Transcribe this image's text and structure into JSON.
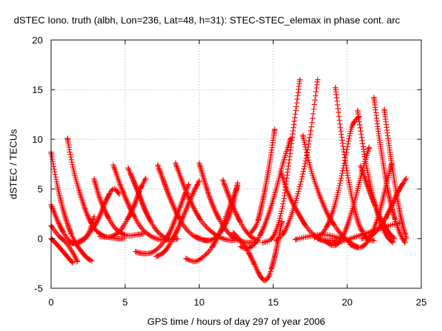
{
  "chart_data": {
    "type": "scatter",
    "title": "dSTEC Iono. truth (albh, Lon=236, Lat=48, h=31): STEC-STEC_elemax in phase cont. arc",
    "xlabel": "GPS time / hours of day 297 of year 2006",
    "ylabel": "dSTEC  / TECUs",
    "xlim": [
      0,
      25
    ],
    "ylim": [
      -5,
      20
    ],
    "x_ticks": [
      "0",
      "5",
      "10",
      "15",
      "20",
      "25"
    ],
    "y_ticks": [
      "-5",
      "0",
      "5",
      "10",
      "15",
      "20"
    ],
    "grid": true,
    "marker": "+",
    "colors": {
      "series": "#ff0000",
      "grid": "#a0a0a0",
      "axis": "#000000"
    },
    "arcs": [
      {
        "x": [
          0.0,
          0.4,
          0.8,
          1.2,
          1.6,
          2.0,
          2.4,
          2.8
        ],
        "y": [
          8.7,
          5.5,
          3.0,
          1.1,
          -0.3,
          -1.2,
          -1.9,
          -2.3
        ]
      },
      {
        "x": [
          0.0,
          0.5,
          1.0,
          1.5,
          2.0,
          2.5,
          2.9
        ],
        "y": [
          3.4,
          1.6,
          0.2,
          -0.5,
          -0.3,
          0.4,
          2.2
        ]
      },
      {
        "x": [
          0.0,
          0.5,
          1.0,
          1.5,
          1.8
        ],
        "y": [
          1.3,
          0.3,
          -0.4,
          -1.5,
          -2.4
        ]
      },
      {
        "x": [
          0.0,
          0.4,
          0.8,
          1.2,
          1.5
        ],
        "y": [
          0.0,
          -0.6,
          -1.3,
          -2.0,
          -2.5
        ]
      },
      {
        "x": [
          1.1,
          1.5,
          2.0,
          2.5,
          3.0,
          3.5,
          4.0,
          4.5,
          5.0
        ],
        "y": [
          10.1,
          7.0,
          4.3,
          2.2,
          0.9,
          0.3,
          0.1,
          0.0,
          0.0
        ]
      },
      {
        "x": [
          2.9,
          3.3,
          3.8,
          4.3,
          4.8,
          5.3,
          5.8,
          6.3
        ],
        "y": [
          6.0,
          4.0,
          2.3,
          1.1,
          0.5,
          0.3,
          0.4,
          0.5
        ]
      },
      {
        "x": [
          1.3,
          2.0,
          2.6,
          3.2,
          3.7,
          4.2,
          4.6
        ],
        "y": [
          -0.5,
          -0.2,
          0.6,
          2.0,
          3.8,
          5.0,
          4.5
        ]
      },
      {
        "x": [
          4.2,
          4.7,
          5.2,
          5.7,
          6.2,
          6.8,
          7.4,
          8.0
        ],
        "y": [
          7.4,
          5.3,
          3.5,
          2.0,
          0.9,
          0.2,
          -0.1,
          -0.1
        ]
      },
      {
        "x": [
          5.2,
          5.6,
          6.0,
          6.4,
          6.9,
          7.4,
          8.0,
          8.6
        ],
        "y": [
          7.1,
          5.7,
          4.2,
          2.7,
          1.3,
          0.4,
          -0.1,
          0.0
        ]
      },
      {
        "x": [
          3.3,
          4.0,
          4.6,
          5.1,
          5.6,
          6.0,
          6.4
        ],
        "y": [
          0.2,
          0.2,
          0.7,
          1.8,
          3.3,
          4.9,
          6.1
        ]
      },
      {
        "x": [
          5.7,
          6.2,
          6.8,
          7.4,
          8.0,
          8.5,
          9.0,
          9.3
        ],
        "y": [
          -1.3,
          -1.5,
          -1.4,
          -0.7,
          0.6,
          2.4,
          4.3,
          5.5
        ]
      },
      {
        "x": [
          7.2,
          7.6,
          8.0,
          8.5,
          9.0,
          9.6,
          10.2,
          10.8
        ],
        "y": [
          7.4,
          5.8,
          4.2,
          2.5,
          1.2,
          0.3,
          -0.1,
          -0.2
        ]
      },
      {
        "x": [
          7.1,
          7.6,
          8.0,
          8.5,
          9.0,
          9.5,
          10.0
        ],
        "y": [
          -1.8,
          -1.4,
          -0.6,
          0.8,
          2.5,
          4.3,
          5.8
        ]
      },
      {
        "x": [
          8.4,
          8.9,
          9.4,
          10.0,
          10.6,
          11.2,
          11.8,
          12.4
        ],
        "y": [
          7.6,
          5.6,
          3.8,
          2.1,
          1.0,
          0.3,
          -0.1,
          -0.2
        ]
      },
      {
        "x": [
          9.1,
          9.7,
          10.3,
          10.9,
          11.5,
          12.1,
          12.6
        ],
        "y": [
          -2.0,
          -2.3,
          -1.8,
          -0.8,
          1.0,
          3.4,
          5.3
        ]
      },
      {
        "x": [
          10.0,
          10.4,
          10.8,
          11.3,
          11.8,
          12.3,
          12.9,
          13.5,
          14.0
        ],
        "y": [
          7.6,
          5.6,
          3.8,
          2.1,
          0.9,
          0.1,
          -0.3,
          -0.4,
          -0.3
        ]
      },
      {
        "x": [
          11.6,
          12.0,
          12.5,
          13.0,
          13.5,
          14.0
        ],
        "y": [
          5.9,
          4.3,
          2.5,
          1.1,
          0.2,
          -0.2
        ]
      },
      {
        "x": [
          9.8,
          10.5,
          11.2,
          11.8,
          12.3,
          12.6
        ],
        "y": [
          0.2,
          -0.2,
          0.2,
          1.5,
          3.5,
          5.6
        ]
      },
      {
        "x": [
          12.3,
          12.8,
          13.3,
          13.8,
          14.1,
          14.4,
          14.7,
          15.0,
          15.3,
          15.6
        ],
        "y": [
          0.6,
          -0.2,
          -1.3,
          -2.8,
          -3.7,
          -4.2,
          -3.8,
          -2.4,
          -0.5,
          1.8
        ]
      },
      {
        "x": [
          12.8,
          13.2,
          13.7,
          14.2,
          14.7,
          15.2,
          15.7,
          16.2
        ],
        "y": [
          -0.8,
          -1.0,
          -0.6,
          0.6,
          2.5,
          5.0,
          7.8,
          10.2
        ]
      },
      {
        "x": [
          13.5,
          13.9,
          14.2,
          14.5,
          14.8,
          15.1
        ],
        "y": [
          0.6,
          1.5,
          3.2,
          5.4,
          8.0,
          11.0
        ]
      },
      {
        "x": [
          14.3,
          15.0,
          15.6,
          16.0,
          16.4,
          16.8
        ],
        "y": [
          -0.4,
          0.2,
          3.0,
          7.0,
          11.5,
          16.0
        ]
      },
      {
        "x": [
          15.2,
          15.8,
          16.4,
          17.0,
          17.5,
          18.0
        ],
        "y": [
          -0.2,
          0.8,
          3.2,
          6.5,
          10.5,
          16.0
        ]
      },
      {
        "x": [
          15.5,
          16.0,
          16.6,
          17.2,
          17.8,
          18.4,
          19.0,
          19.6
        ],
        "y": [
          6.8,
          4.6,
          2.8,
          1.3,
          0.3,
          -0.2,
          -0.2,
          -0.3
        ]
      },
      {
        "x": [
          17.0,
          17.5,
          18.1,
          18.7,
          19.3,
          19.8,
          20.3,
          20.8
        ],
        "y": [
          10.4,
          7.2,
          4.5,
          2.4,
          1.0,
          0.1,
          -0.5,
          -0.9
        ]
      },
      {
        "x": [
          17.8,
          18.3,
          18.8,
          19.3,
          19.8,
          20.3,
          20.8
        ],
        "y": [
          0.1,
          0.5,
          1.8,
          4.2,
          7.6,
          11.2,
          12.3
        ]
      },
      {
        "x": [
          19.2,
          19.6,
          20.0,
          20.4,
          20.8,
          21.3,
          21.8
        ],
        "y": [
          15.2,
          10.5,
          6.6,
          3.6,
          1.4,
          0.1,
          -0.2
        ]
      },
      {
        "x": [
          18.5,
          19.0,
          19.5,
          20.0,
          20.5,
          21.0,
          21.5
        ],
        "y": [
          -0.2,
          -0.7,
          -0.3,
          1.3,
          3.8,
          6.7,
          9.3
        ]
      },
      {
        "x": [
          20.7,
          21.1,
          21.5,
          21.9,
          22.3,
          22.7,
          23.1
        ],
        "y": [
          12.9,
          9.0,
          5.8,
          3.3,
          1.4,
          0.2,
          -0.4
        ]
      },
      {
        "x": [
          21.8,
          22.1,
          22.4,
          22.7,
          23.0,
          23.3,
          23.6,
          23.9
        ],
        "y": [
          14.2,
          10.8,
          7.8,
          5.2,
          3.2,
          1.6,
          0.4,
          -0.4
        ]
      },
      {
        "x": [
          22.5,
          22.8,
          23.1,
          23.4,
          23.7,
          24.0
        ],
        "y": [
          13.0,
          9.6,
          6.6,
          3.9,
          1.6,
          0.0
        ]
      },
      {
        "x": [
          20.2,
          20.7,
          21.2,
          21.7,
          22.2,
          22.6,
          23.0
        ],
        "y": [
          -0.6,
          -0.9,
          -0.6,
          0.6,
          2.8,
          5.2,
          7.6
        ]
      },
      {
        "x": [
          21.0,
          21.5,
          22.0,
          22.5,
          23.0,
          23.5,
          24.0
        ],
        "y": [
          0.0,
          0.2,
          0.8,
          1.8,
          3.3,
          4.9,
          6.1
        ]
      },
      {
        "x": [
          20.9,
          21.3,
          21.7,
          22.1,
          22.5,
          22.8,
          23.2
        ],
        "y": [
          7.3,
          5.6,
          4.0,
          2.6,
          1.4,
          0.6,
          0.0
        ]
      },
      {
        "x": [
          18.0,
          18.8,
          19.6,
          20.4,
          21.2,
          22.0,
          22.8,
          23.6
        ],
        "y": [
          0.0,
          -0.4,
          -0.3,
          0.1,
          0.5,
          0.9,
          1.3,
          1.6
        ]
      },
      {
        "x": [
          16.5,
          17.3,
          18.1,
          18.9,
          19.6
        ],
        "y": [
          -0.1,
          0.2,
          0.4,
          0.3,
          0.0
        ]
      }
    ]
  }
}
